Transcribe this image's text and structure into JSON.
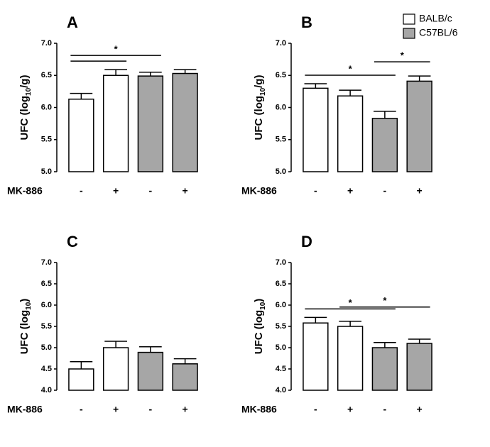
{
  "legend": [
    {
      "name": "BALB/c",
      "color": "#ffffff"
    },
    {
      "name": "C57BL/6",
      "color": "#a6a6a6"
    }
  ],
  "chart_data": [
    {
      "type": "bar",
      "title": "A",
      "y_label_parts": [
        "UFC (log",
        "10",
        "/g)"
      ],
      "x_label": "MK-886",
      "categories": [
        "-",
        "+",
        "-",
        "+"
      ],
      "values": [
        6.13,
        6.5,
        6.49,
        6.53
      ],
      "errors": [
        0.09,
        0.09,
        0.06,
        0.06
      ],
      "bar_colors": [
        "#ffffff",
        "#ffffff",
        "#a6a6a6",
        "#a6a6a6"
      ],
      "ylim": [
        5.0,
        7.0
      ],
      "yticks": [
        {
          "value": 5,
          "label": "5.0"
        },
        {
          "value": 5.5,
          "label": "5.5"
        },
        {
          "value": 6,
          "label": "6.0"
        },
        {
          "value": 6.5,
          "label": "6.5"
        },
        {
          "value": 7,
          "label": "7.0"
        }
      ],
      "comparisons": [
        {
          "between": [
            0,
            1
          ]
        },
        {
          "between": [
            0,
            2
          ],
          "label": "*"
        }
      ]
    },
    {
      "type": "bar",
      "title": "B",
      "y_label_parts": [
        "UFC (log",
        "10",
        "/g)"
      ],
      "x_label": "MK-886",
      "categories": [
        "-",
        "+",
        "-",
        "+"
      ],
      "values": [
        6.3,
        6.18,
        5.83,
        6.41
      ],
      "errors": [
        0.07,
        0.09,
        0.11,
        0.08
      ],
      "bar_colors": [
        "#ffffff",
        "#ffffff",
        "#a6a6a6",
        "#a6a6a6"
      ],
      "ylim": [
        5.0,
        7.0
      ],
      "yticks": [
        {
          "value": 5,
          "label": "5.0"
        },
        {
          "value": 5.5,
          "label": "5.5"
        },
        {
          "value": 6,
          "label": "6.0"
        },
        {
          "value": 6.5,
          "label": "6.5"
        },
        {
          "value": 7,
          "label": "7.0"
        }
      ],
      "comparisons": [
        {
          "between": [
            0,
            2
          ],
          "label": "*"
        },
        {
          "between": [
            2,
            3
          ],
          "label": "*"
        }
      ]
    },
    {
      "type": "bar",
      "title": "C",
      "y_label_parts": [
        "UFC (log",
        "10",
        ")"
      ],
      "x_label": "MK-886",
      "categories": [
        "-",
        "+",
        "-",
        "+"
      ],
      "values": [
        4.5,
        5.0,
        4.89,
        4.62
      ],
      "errors": [
        0.17,
        0.15,
        0.13,
        0.12
      ],
      "bar_colors": [
        "#ffffff",
        "#ffffff",
        "#a6a6a6",
        "#a6a6a6"
      ],
      "ylim": [
        4.0,
        7.0
      ],
      "yticks": [
        {
          "value": 4,
          "label": "4.0"
        },
        {
          "value": 4.5,
          "label": "4.5"
        },
        {
          "value": 5,
          "label": "5.0"
        },
        {
          "value": 5.5,
          "label": "5.5"
        },
        {
          "value": 6,
          "label": "6.0"
        },
        {
          "value": 6.5,
          "label": "6.5"
        },
        {
          "value": 7,
          "label": "7.0"
        }
      ],
      "comparisons": []
    },
    {
      "type": "bar",
      "title": "D",
      "y_label_parts": [
        "UFC (log",
        "10",
        ")"
      ],
      "x_label": "MK-886",
      "categories": [
        "-",
        "+",
        "-",
        "+"
      ],
      "values": [
        5.58,
        5.5,
        5.0,
        5.1
      ],
      "errors": [
        0.13,
        0.12,
        0.12,
        0.1
      ],
      "bar_colors": [
        "#ffffff",
        "#ffffff",
        "#a6a6a6",
        "#a6a6a6"
      ],
      "ylim": [
        4.0,
        7.0
      ],
      "yticks": [
        {
          "value": 4,
          "label": "4.0"
        },
        {
          "value": 4.5,
          "label": "4.5"
        },
        {
          "value": 5,
          "label": "5.0"
        },
        {
          "value": 5.5,
          "label": "5.5"
        },
        {
          "value": 6,
          "label": "6.0"
        },
        {
          "value": 6.5,
          "label": "6.5"
        },
        {
          "value": 7,
          "label": "7.0"
        }
      ],
      "comparisons": [
        {
          "between": [
            0,
            2
          ],
          "label": "*"
        },
        {
          "between": [
            1,
            3
          ],
          "label": "*"
        }
      ]
    }
  ]
}
